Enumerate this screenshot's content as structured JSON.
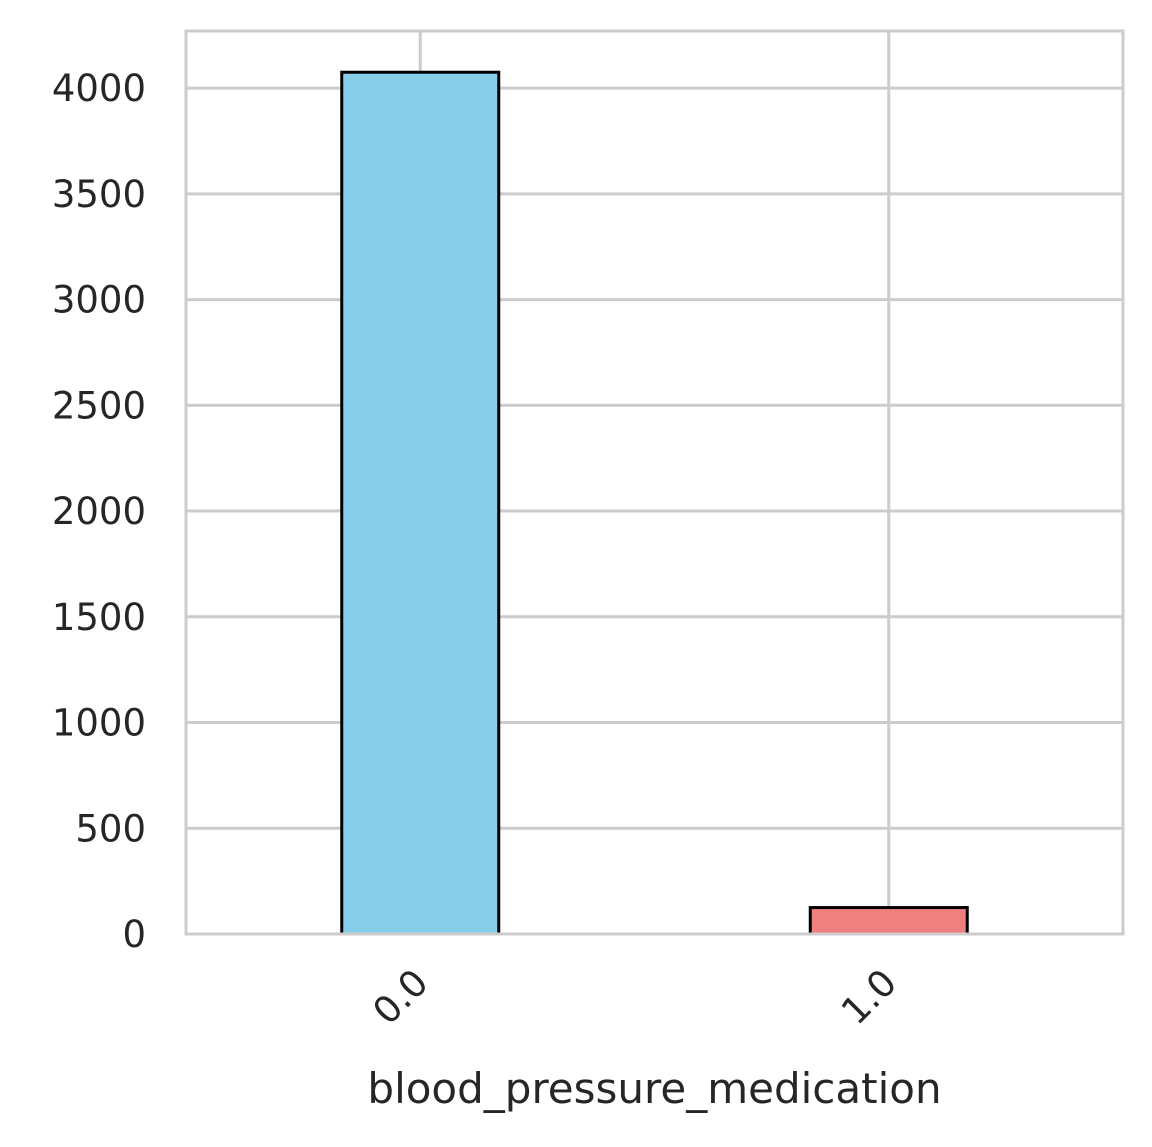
{
  "chart_data": {
    "type": "bar",
    "title": "",
    "xlabel": "blood_pressure_medication",
    "ylabel": "",
    "categories": [
      "0.0",
      "1.0"
    ],
    "values": [
      4075,
      125
    ],
    "colors": [
      "#87CEEB",
      "#F08080"
    ],
    "edge_color": "#000000",
    "ylim": [
      0,
      4270
    ],
    "yticks": [
      0,
      500,
      1000,
      1500,
      2000,
      2500,
      3000,
      3500,
      4000
    ],
    "grid": true,
    "legend": "none",
    "grid_color": "#cccccc",
    "text_color": "#262626"
  }
}
